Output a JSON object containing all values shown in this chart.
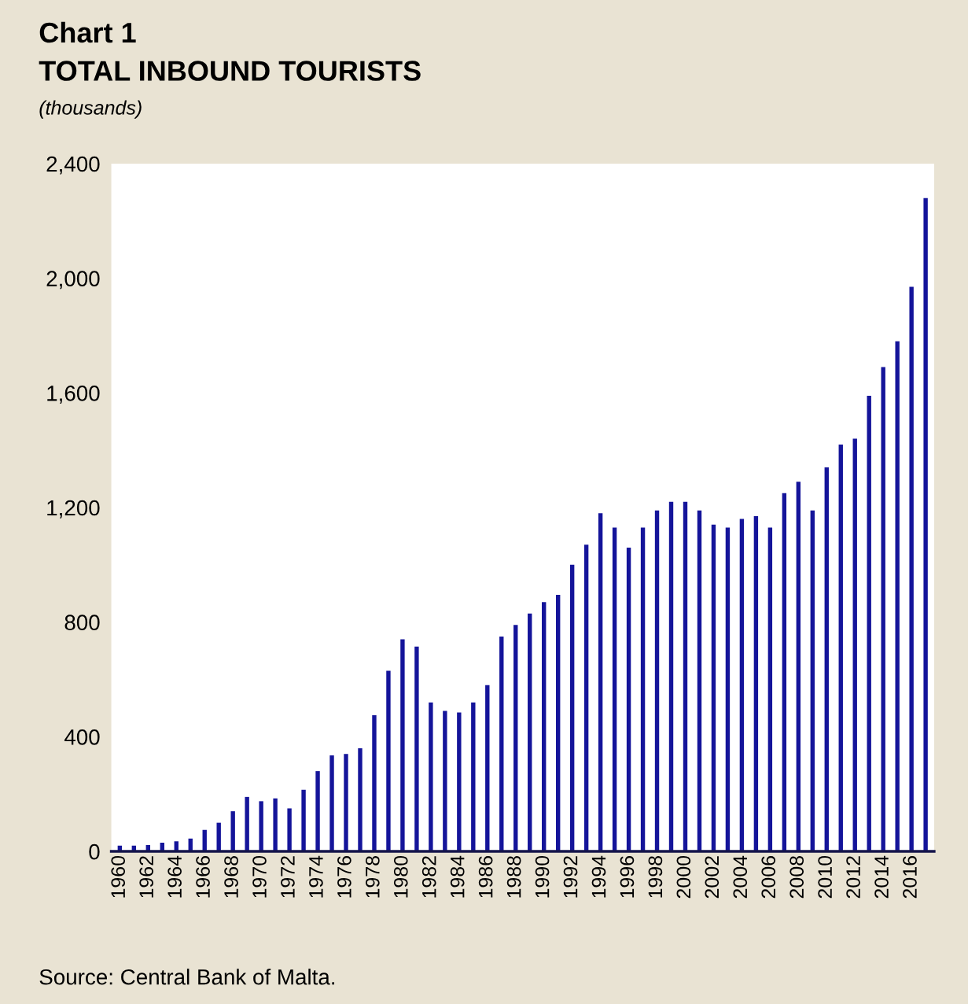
{
  "chart_data": {
    "type": "bar",
    "title": "Chart 1",
    "subtitle": "TOTAL INBOUND TOURISTS",
    "ylabel": "(thousands)",
    "categories": [
      "1960",
      null,
      "1962",
      null,
      "1964",
      null,
      "1966",
      null,
      "1968",
      null,
      "1970",
      null,
      "1972",
      null,
      "1974",
      null,
      "1976",
      null,
      "1978",
      null,
      "1980",
      null,
      "1982",
      null,
      "1984",
      null,
      "1986",
      null,
      "1988",
      null,
      "1990",
      null,
      "1992",
      null,
      "1994",
      null,
      "1996",
      null,
      "1998",
      null,
      "2000",
      null,
      "2002",
      null,
      "2004",
      null,
      "2006",
      null,
      "2008",
      null,
      "2010",
      null,
      "2012",
      null,
      "2014",
      null,
      "2016",
      null
    ],
    "values": [
      20,
      20,
      22,
      30,
      35,
      45,
      75,
      100,
      140,
      190,
      175,
      185,
      150,
      215,
      280,
      335,
      340,
      360,
      475,
      630,
      740,
      715,
      520,
      490,
      485,
      520,
      580,
      750,
      790,
      830,
      870,
      895,
      1000,
      1070,
      1180,
      1130,
      1060,
      1130,
      1190,
      1220,
      1220,
      1190,
      1140,
      1130,
      1160,
      1170,
      1130,
      1250,
      1290,
      1190,
      1340,
      1420,
      1440,
      1590,
      1690,
      1780,
      1970,
      2280
    ],
    "color": "#14149a",
    "ylim": [
      0,
      2400
    ],
    "yticks": [
      {
        "value": 0,
        "label": "0"
      },
      {
        "value": 400,
        "label": "400"
      },
      {
        "value": 800,
        "label": "800"
      },
      {
        "value": 1200,
        "label": "1,200"
      },
      {
        "value": 1600,
        "label": "1,600"
      },
      {
        "value": 2000,
        "label": "2,000"
      },
      {
        "value": 2400,
        "label": "2,400"
      }
    ],
    "grid": false,
    "legend": false,
    "annotations": [
      "Source: Central Bank of Malta."
    ]
  }
}
